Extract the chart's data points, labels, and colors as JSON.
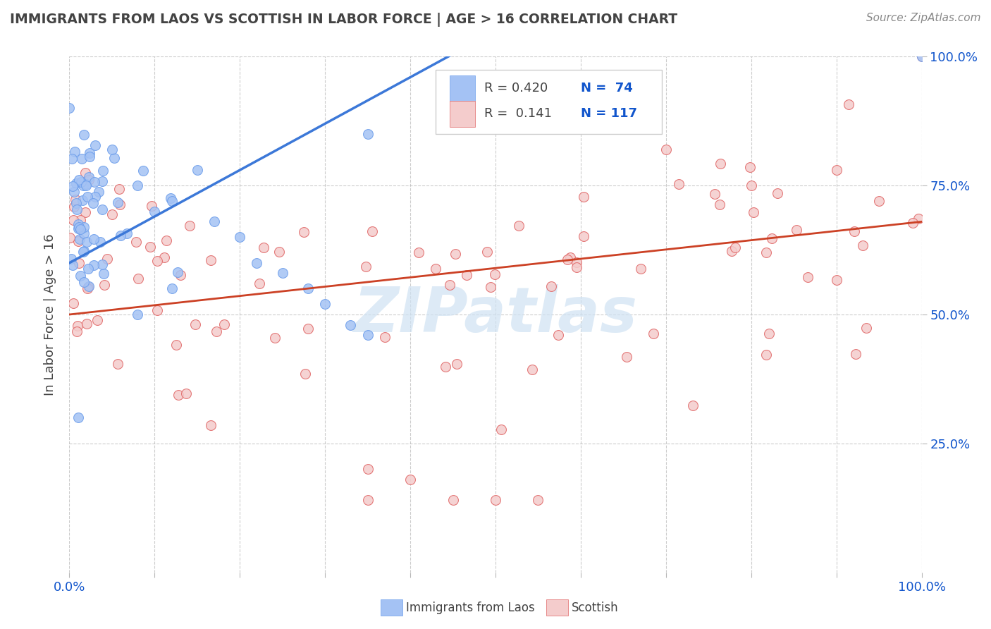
{
  "title": "IMMIGRANTS FROM LAOS VS SCOTTISH IN LABOR FORCE | AGE > 16 CORRELATION CHART",
  "source": "Source: ZipAtlas.com",
  "ylabel": "In Labor Force | Age > 16",
  "xlim": [
    0.0,
    1.0
  ],
  "ylim": [
    0.0,
    1.0
  ],
  "blue_color": "#a4c2f4",
  "pink_color": "#f4cccc",
  "blue_edge": "#6d9eeb",
  "pink_edge": "#e06666",
  "line_blue": "#3c78d8",
  "line_pink": "#cc4125",
  "watermark_color": "#cfe2f3",
  "watermark_text": "ZIPatlas",
  "legend_r1": "R = 0.420",
  "legend_n1": "N =  74",
  "legend_r2": "R =  0.141",
  "legend_n2": "N = 117",
  "text_dark": "#434343",
  "text_blue": "#1155cc",
  "grid_color": "#b7b7b7",
  "ytick_color": "#1155cc",
  "xtick_color": "#1155cc"
}
